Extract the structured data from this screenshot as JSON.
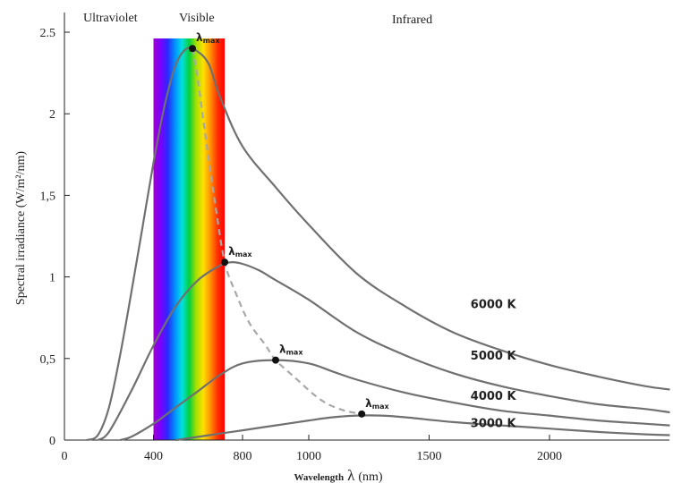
{
  "chart_data": {
    "type": "line",
    "title": "",
    "regions": [
      "Ultraviolet",
      "Visible",
      "Infrared"
    ],
    "xlabel_prefix": "Wavelength",
    "xlabel_symbol": "λ",
    "xlabel_unit": "(nm)",
    "ylabel": "Spectral irradiance (W/m²/nm)",
    "xlim": [
      0,
      2500
    ],
    "ylim": [
      0,
      2.5
    ],
    "x_ticks": [
      {
        "value": 0,
        "label": "0"
      },
      {
        "value": 400,
        "label": "400"
      },
      {
        "value": 800,
        "label": "800"
      },
      {
        "value": 1000,
        "label": "1000"
      },
      {
        "value": 1500,
        "label": "1500"
      },
      {
        "value": 2000,
        "label": "2000"
      }
    ],
    "y_ticks": [
      {
        "value": 0,
        "label": "0"
      },
      {
        "value": 0.5,
        "label": "0,5"
      },
      {
        "value": 1,
        "label": "1"
      },
      {
        "value": 1.5,
        "label": "1,5"
      },
      {
        "value": 2,
        "label": "2"
      },
      {
        "value": 2.5,
        "label": "2.5"
      }
    ],
    "visible_band": [
      400,
      720
    ],
    "peak_marker_label": "λ",
    "peak_marker_sub": "max",
    "series": [
      {
        "name": "6000 K",
        "x": [
          100,
          150,
          200,
          250,
          300,
          350,
          400,
          450,
          500,
          550,
          600,
          650,
          700,
          800,
          900,
          1000,
          1200,
          1400,
          1600,
          1800,
          2000,
          2200,
          2400,
          2500
        ],
        "y": [
          0.0,
          0.03,
          0.2,
          0.52,
          0.9,
          1.3,
          1.7,
          2.05,
          2.3,
          2.4,
          2.38,
          2.3,
          2.1,
          1.8,
          1.55,
          1.32,
          1.02,
          0.82,
          0.66,
          0.55,
          0.46,
          0.39,
          0.33,
          0.31
        ],
        "peak": [
          575,
          2.4
        ]
      },
      {
        "name": "5000 K",
        "x": [
          150,
          200,
          300,
          400,
          500,
          600,
          700,
          750,
          800,
          850,
          900,
          1000,
          1200,
          1400,
          1600,
          1800,
          2000,
          2200,
          2400,
          2500
        ],
        "y": [
          0.0,
          0.05,
          0.3,
          0.58,
          0.82,
          0.98,
          1.07,
          1.09,
          1.08,
          1.04,
          0.98,
          0.86,
          0.66,
          0.52,
          0.41,
          0.33,
          0.27,
          0.22,
          0.19,
          0.17
        ],
        "peak": [
          720,
          1.09
        ]
      },
      {
        "name": "4000 K",
        "x": [
          250,
          300,
          400,
          500,
          600,
          700,
          800,
          900,
          1000,
          1100,
          1200,
          1400,
          1600,
          1800,
          2000,
          2200,
          2400,
          2500
        ],
        "y": [
          0.0,
          0.02,
          0.1,
          0.2,
          0.3,
          0.4,
          0.47,
          0.49,
          0.47,
          0.42,
          0.37,
          0.29,
          0.23,
          0.18,
          0.15,
          0.12,
          0.1,
          0.09
        ],
        "peak": [
          900,
          0.49
        ]
      },
      {
        "name": "3000 K",
        "x": [
          500,
          600,
          700,
          800,
          900,
          1000,
          1100,
          1200,
          1300,
          1400,
          1600,
          1800,
          2000,
          2200,
          2400,
          2500
        ],
        "y": [
          0.0,
          0.02,
          0.04,
          0.06,
          0.09,
          0.12,
          0.14,
          0.15,
          0.15,
          0.14,
          0.11,
          0.09,
          0.07,
          0.05,
          0.035,
          0.03
        ],
        "peak": [
          1220,
          0.16
        ]
      }
    ],
    "wien_curve": {
      "x": [
        575,
        600,
        640,
        680,
        720,
        770,
        820,
        870,
        900,
        960,
        1020,
        1080,
        1150,
        1220
      ],
      "y": [
        2.4,
        2.2,
        1.8,
        1.42,
        1.09,
        0.9,
        0.72,
        0.58,
        0.49,
        0.38,
        0.28,
        0.22,
        0.18,
        0.16
      ]
    },
    "colors": {
      "curve": "#707070",
      "wien": "#a8a8a8",
      "axis": "#222222"
    }
  }
}
